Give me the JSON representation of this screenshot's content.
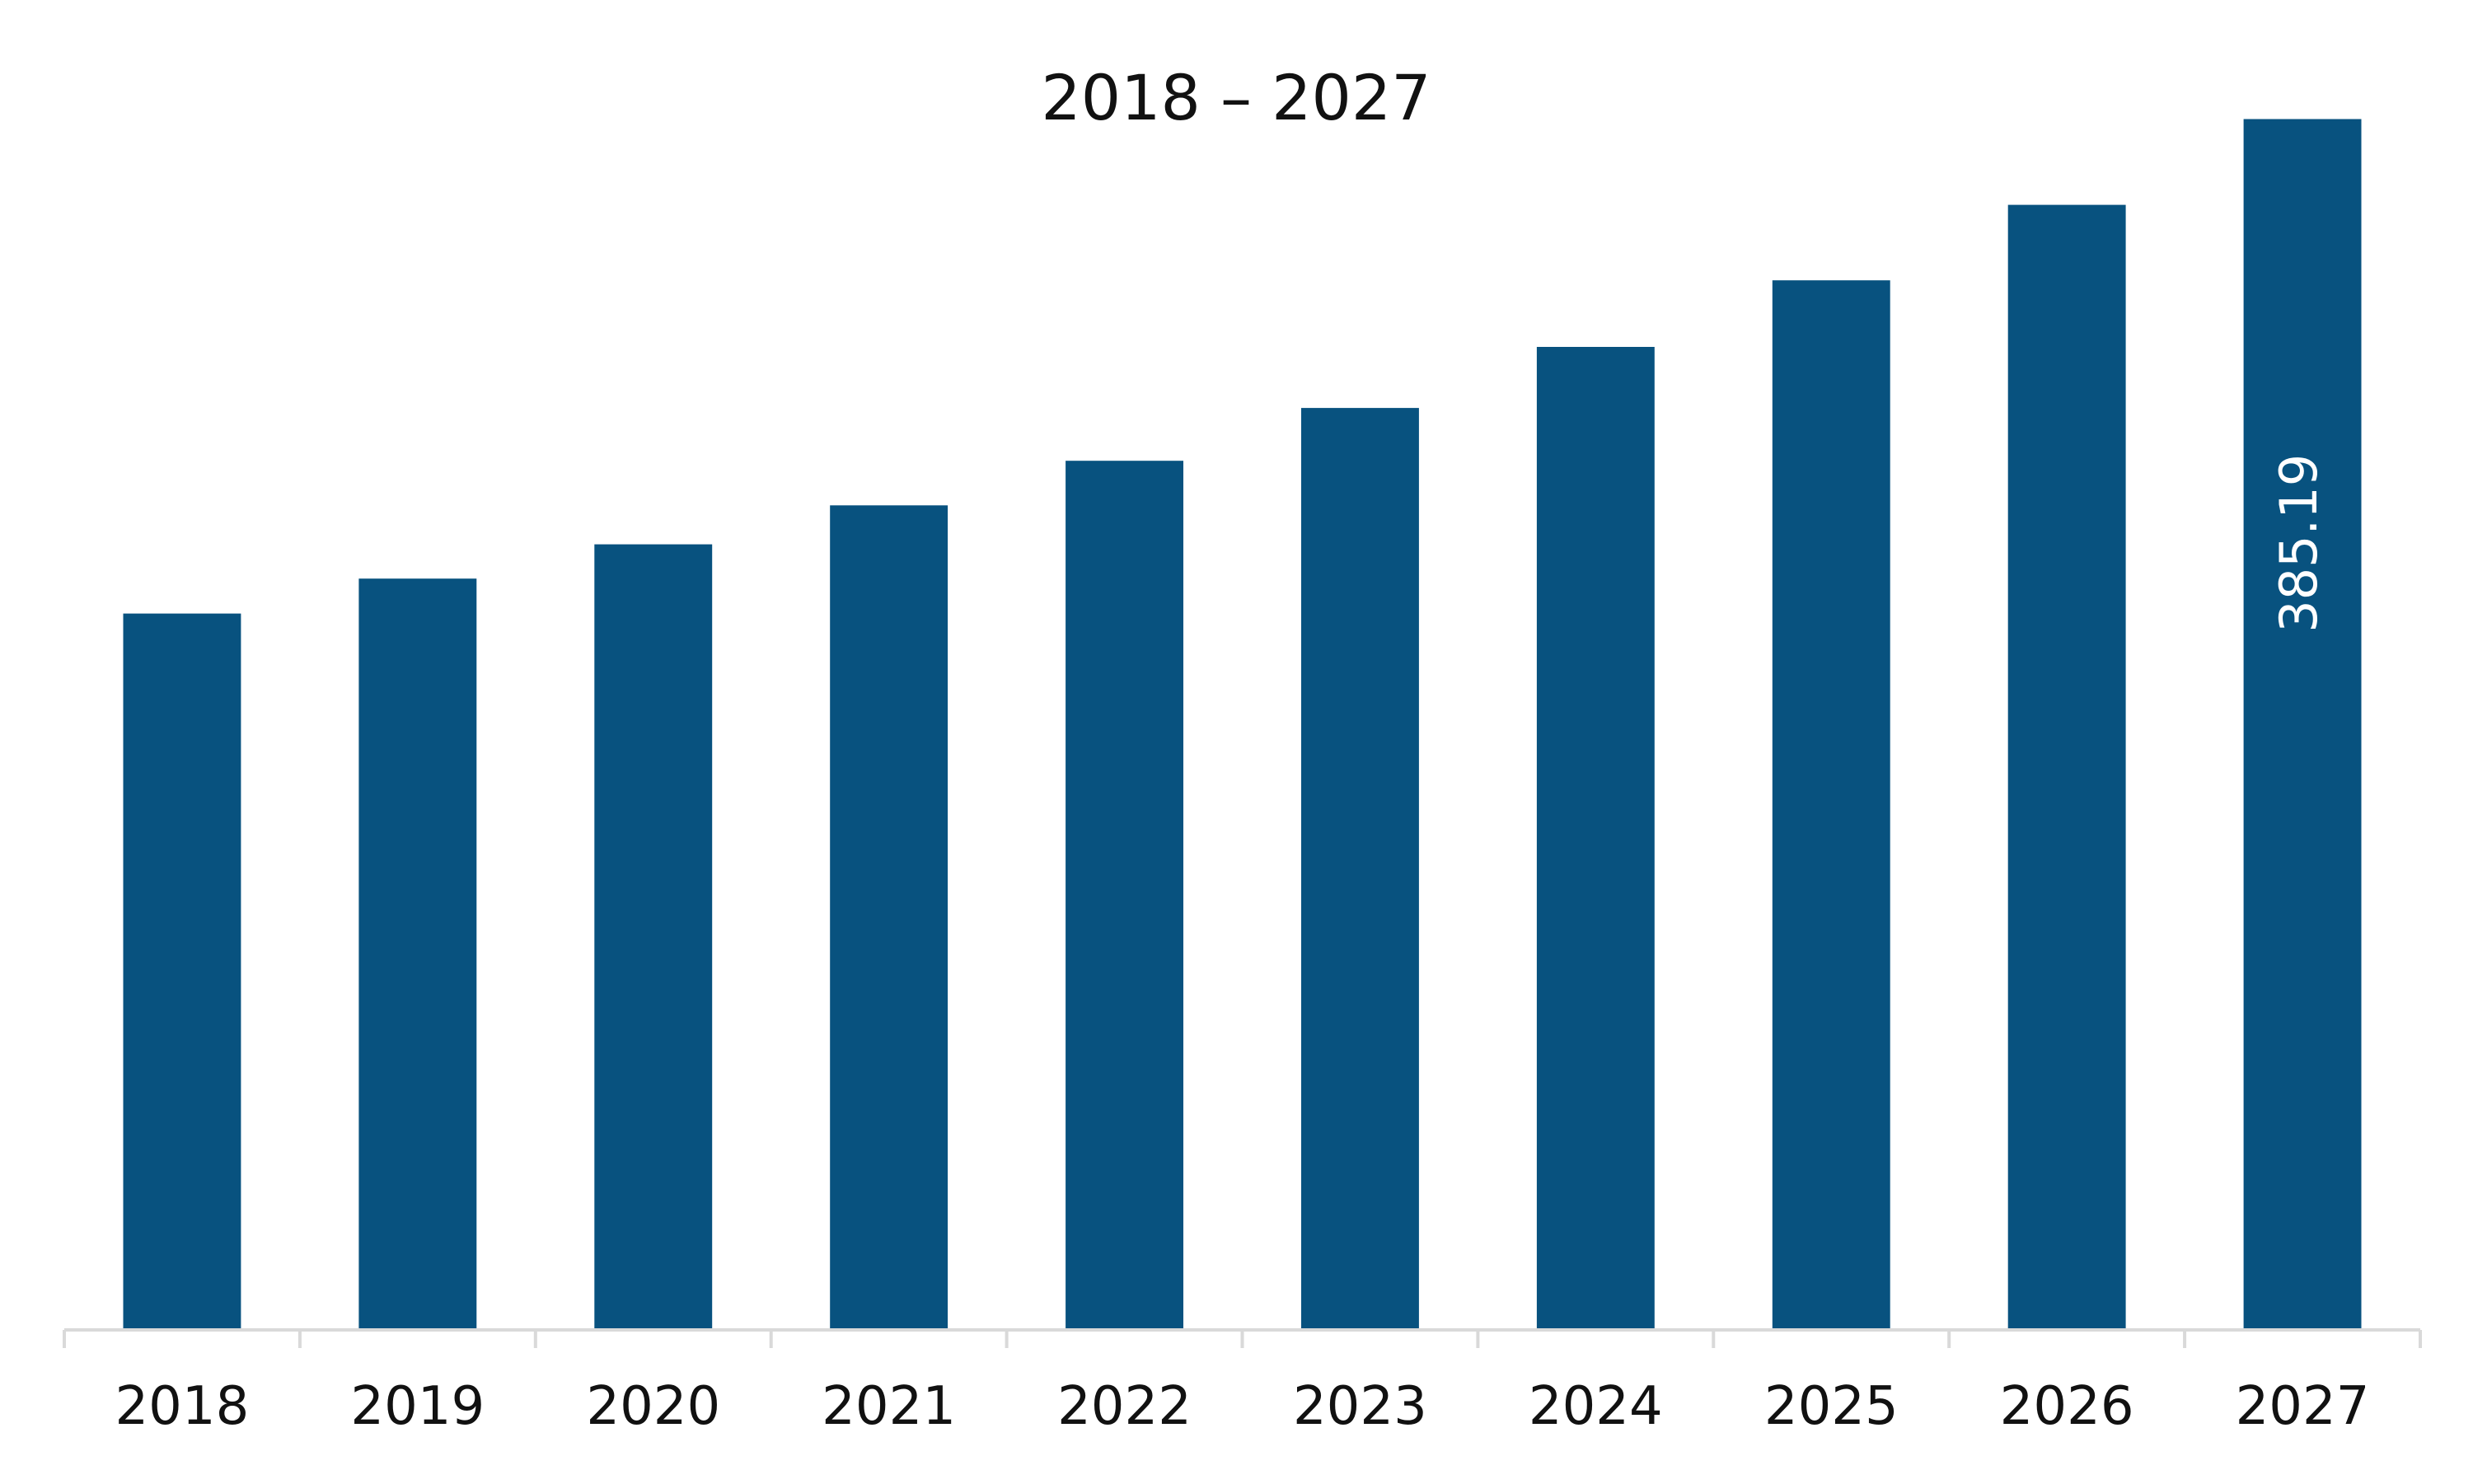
{
  "chart_data": {
    "type": "bar",
    "title": "2018 – 2027",
    "xlabel": "",
    "ylabel": "",
    "categories": [
      "2018",
      "2019",
      "2020",
      "2021",
      "2022",
      "2023",
      "2024",
      "2025",
      "2026",
      "2027"
    ],
    "values": [
      227.9,
      239.0,
      249.9,
      262.3,
      276.5,
      293.3,
      312.7,
      333.9,
      357.9,
      385.19
    ],
    "data_labels": [
      "",
      "",
      "",
      "",
      "",
      "",
      "",
      "",
      "",
      "385.19"
    ],
    "ylim": [
      0,
      400
    ],
    "grid": false,
    "legend": "none",
    "colors": {
      "bar": "#08527f",
      "axis": "#d9d9d9",
      "text": "#111111",
      "data_label": "#ffffff"
    }
  }
}
